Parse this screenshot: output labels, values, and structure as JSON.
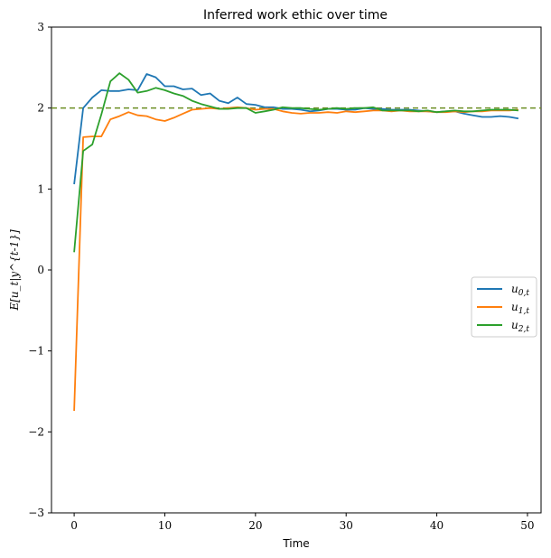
{
  "chart_data": {
    "type": "line",
    "title": "Inferred work ethic over time",
    "xlabel": "Time",
    "ylabel": "E[u_t|y^{t-1}]",
    "xlim": [
      -2.5,
      51.5
    ],
    "ylim": [
      -3,
      3
    ],
    "xticks": [
      0,
      10,
      20,
      30,
      40,
      50
    ],
    "yticks": [
      -3,
      -2,
      -1,
      0,
      1,
      2,
      3
    ],
    "xtick_labels": [
      "0",
      "10",
      "20",
      "30",
      "40",
      "50"
    ],
    "ytick_labels": [
      "−3",
      "−2",
      "−1",
      "0",
      "1",
      "2",
      "3"
    ],
    "grid": false,
    "legend_position": "center-right",
    "reference_line": {
      "y": 2,
      "color": "#6b8e23",
      "style": "dashed"
    },
    "x": [
      0,
      1,
      2,
      3,
      4,
      5,
      6,
      7,
      8,
      9,
      10,
      11,
      12,
      13,
      14,
      15,
      16,
      17,
      18,
      19,
      20,
      21,
      22,
      23,
      24,
      25,
      26,
      27,
      28,
      29,
      30,
      31,
      32,
      33,
      34,
      35,
      36,
      37,
      38,
      39,
      40,
      41,
      42,
      43,
      44,
      45,
      46,
      47,
      48,
      49
    ],
    "series": [
      {
        "name": "u_{0,t}",
        "legend_label": "u",
        "legend_sub": "0,t",
        "color": "#1f77b4",
        "values": [
          1.06,
          2.0,
          2.13,
          2.22,
          2.21,
          2.21,
          2.23,
          2.22,
          2.42,
          2.38,
          2.27,
          2.27,
          2.23,
          2.24,
          2.16,
          2.18,
          2.09,
          2.06,
          2.13,
          2.05,
          2.04,
          2.01,
          2.01,
          1.99,
          1.99,
          1.98,
          1.96,
          1.97,
          1.99,
          1.99,
          1.98,
          1.98,
          2.0,
          1.99,
          1.99,
          1.98,
          1.98,
          1.98,
          1.97,
          1.96,
          1.95,
          1.96,
          1.96,
          1.93,
          1.91,
          1.89,
          1.89,
          1.9,
          1.89,
          1.87
        ]
      },
      {
        "name": "u_{1,t}",
        "legend_label": "u",
        "legend_sub": "1,t",
        "color": "#ff7f0e",
        "values": [
          -1.74,
          1.64,
          1.65,
          1.65,
          1.86,
          1.9,
          1.95,
          1.91,
          1.9,
          1.86,
          1.84,
          1.88,
          1.93,
          1.98,
          1.99,
          2.0,
          1.99,
          2.0,
          2.01,
          2.0,
          1.98,
          1.99,
          1.99,
          1.96,
          1.94,
          1.93,
          1.94,
          1.94,
          1.95,
          1.94,
          1.96,
          1.95,
          1.96,
          1.97,
          1.97,
          1.96,
          1.97,
          1.96,
          1.96,
          1.96,
          1.95,
          1.95,
          1.96,
          1.95,
          1.96,
          1.96,
          1.97,
          1.97,
          1.97,
          1.98
        ]
      },
      {
        "name": "u_{2,t}",
        "legend_label": "u",
        "legend_sub": "2,t",
        "color": "#2ca02c",
        "values": [
          0.22,
          1.47,
          1.55,
          1.92,
          2.33,
          2.43,
          2.35,
          2.19,
          2.21,
          2.25,
          2.22,
          2.18,
          2.15,
          2.09,
          2.05,
          2.02,
          1.99,
          1.99,
          2.0,
          2.0,
          1.94,
          1.96,
          1.98,
          2.01,
          2.0,
          2.0,
          1.99,
          1.98,
          1.99,
          2.0,
          1.99,
          2.0,
          2.0,
          2.01,
          1.97,
          1.97,
          1.97,
          1.97,
          1.96,
          1.97,
          1.95,
          1.96,
          1.97,
          1.96,
          1.96,
          1.97,
          1.98,
          1.98,
          1.98,
          1.97
        ]
      }
    ]
  }
}
